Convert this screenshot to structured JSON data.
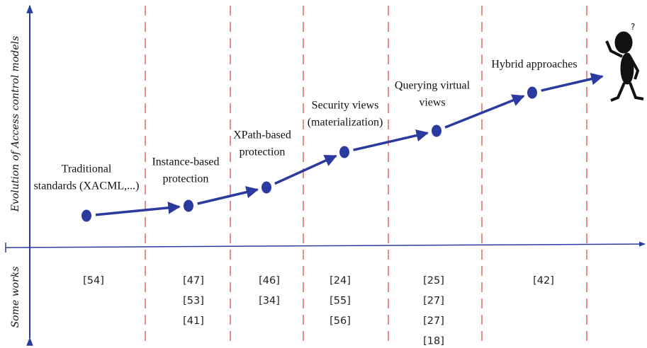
{
  "axis_labels": {
    "upper": "Evolution of Access control models",
    "lower": "Some works"
  },
  "stages": [
    {
      "label_lines": [
        "Traditional",
        "standards (XACML,...)"
      ],
      "works": [
        "[54]"
      ]
    },
    {
      "label_lines": [
        "Instance-based",
        "protection"
      ],
      "works": [
        "[47]",
        "[53]",
        "[41]"
      ]
    },
    {
      "label_lines": [
        "XPath-based",
        "protection"
      ],
      "works": [
        "[46]",
        "[34]"
      ]
    },
    {
      "label_lines": [
        "Security views",
        "(materialization)"
      ],
      "works": [
        "[24]",
        "[55]",
        "[56]"
      ]
    },
    {
      "label_lines": [
        "Querying virtual",
        "views"
      ],
      "works": [
        "[25]",
        "[27]",
        "[27]",
        "[18]"
      ]
    },
    {
      "label_lines": [
        "Hybrid approaches"
      ],
      "works": [
        "[42]"
      ]
    }
  ]
}
